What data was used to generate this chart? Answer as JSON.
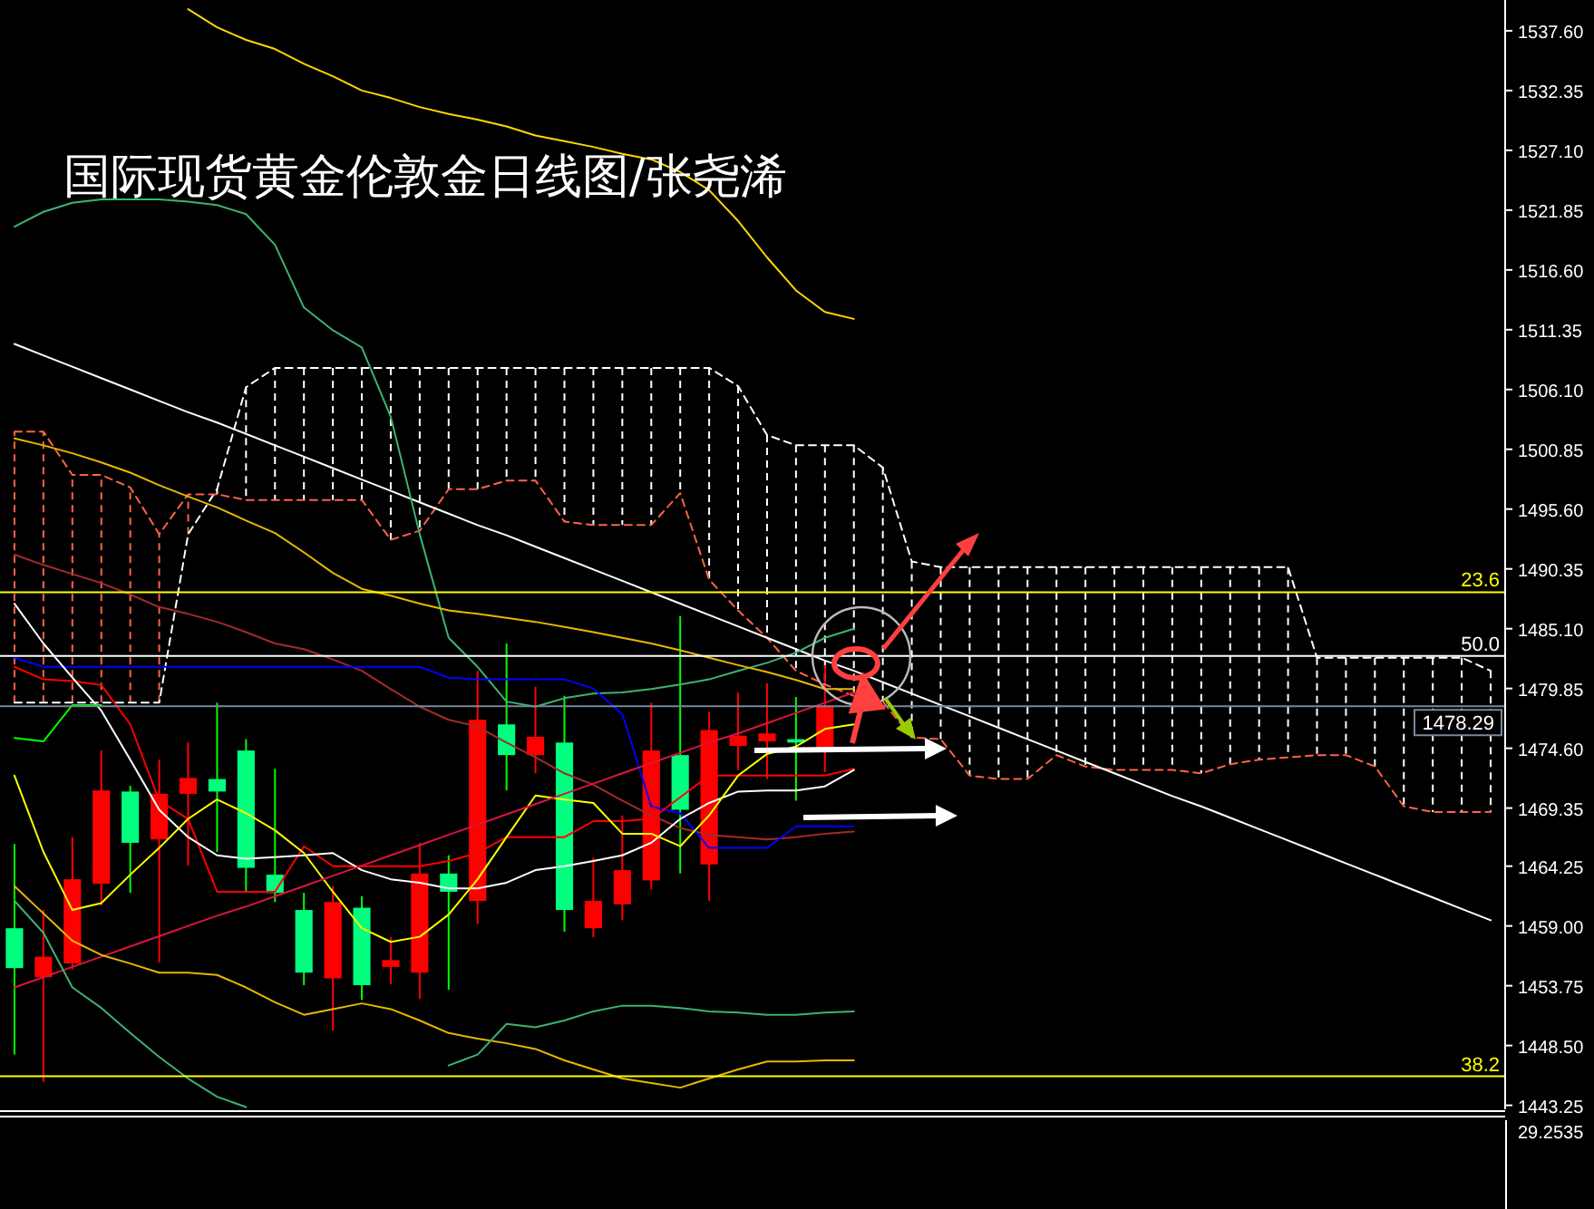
{
  "chart_data": {
    "type": "candlestick",
    "title": "国际现货黄金伦敦金日线图/张尧浠",
    "categories": [
      null,
      null,
      null,
      null,
      null,
      null,
      null,
      null,
      null,
      null,
      null,
      null,
      null,
      null,
      null,
      null,
      null,
      null,
      null,
      null,
      null,
      null,
      null,
      null,
      null,
      null,
      null,
      null,
      null,
      null,
      null,
      null,
      null,
      null,
      null,
      null,
      null,
      null,
      null,
      null,
      null,
      null,
      null,
      null,
      null,
      null,
      null,
      null,
      null,
      null,
      null,
      null
    ],
    "ohlc": [
      [
        1458.8,
        1466.2,
        1447.7,
        1455.3
      ],
      [
        1454.5,
        1460.4,
        1445.3,
        1456.3
      ],
      [
        1455.7,
        1466.8,
        1455.2,
        1463.1
      ],
      [
        1462.7,
        1474.4,
        1460.8,
        1470.9
      ],
      [
        1470.8,
        1471.3,
        1461.9,
        1466.3
      ],
      [
        1466.6,
        1473.6,
        1455.8,
        1470.6
      ],
      [
        1470.6,
        1475.1,
        1464.3,
        1472.0
      ],
      [
        1471.9,
        1478.6,
        1465.5,
        1470.8
      ],
      [
        1474.4,
        1475.4,
        1462.0,
        1464.1
      ],
      [
        1463.5,
        1472.8,
        1461.1,
        1461.9
      ],
      [
        1460.4,
        1461.9,
        1453.8,
        1454.9
      ],
      [
        1454.4,
        1462.5,
        1449.8,
        1461.1
      ],
      [
        1460.6,
        1461.6,
        1452.5,
        1453.8
      ],
      [
        1455.4,
        1458.0,
        1453.9,
        1456.0
      ],
      [
        1454.9,
        1466.3,
        1452.6,
        1463.6
      ],
      [
        1463.6,
        1465.2,
        1453.4,
        1462.0
      ],
      [
        1461.2,
        1481.4,
        1459.2,
        1477.1
      ],
      [
        1476.7,
        1483.8,
        1470.9,
        1474.0
      ],
      [
        1474.0,
        1480.0,
        1472.4,
        1475.6
      ],
      [
        1475.1,
        1479.2,
        1458.5,
        1460.4
      ],
      [
        1458.8,
        1465.0,
        1458.0,
        1461.2
      ],
      [
        1460.9,
        1468.7,
        1459.5,
        1463.9
      ],
      [
        1463.0,
        1478.6,
        1462.2,
        1474.4
      ],
      [
        1474.0,
        1486.2,
        1463.6,
        1469.2
      ],
      [
        1464.4,
        1477.8,
        1461.2,
        1476.2
      ],
      [
        1474.8,
        1479.5,
        1472.7,
        1475.7
      ],
      [
        1475.2,
        1480.3,
        1471.9,
        1475.9
      ],
      [
        1475.4,
        1479.1,
        1470.0,
        1475.1
      ],
      [
        1474.4,
        1481.9,
        1472.5,
        1478.29
      ],
      null,
      null,
      null,
      null,
      null,
      null,
      null,
      null,
      null,
      null,
      null,
      null,
      null,
      null,
      null,
      null,
      null,
      null,
      null,
      null,
      null,
      null,
      null
    ],
    "colors": [
      "#00ff7f",
      "#ff0000",
      "#ff0000",
      "#ff0000",
      "#00ff7f",
      "#ff0000",
      "#ff0000",
      "#00ff7f",
      "#00ff7f",
      "#00ff7f",
      "#00ff7f",
      "#ff0000",
      "#00ff7f",
      "#ff0000",
      "#ff0000",
      "#00ff7f",
      "#ff0000",
      "#00ff7f",
      "#ff0000",
      "#00ff7f",
      "#ff0000",
      "#ff0000",
      "#ff0000",
      "#00ff7f",
      "#ff0000",
      "#ff0000",
      "#ff0000",
      "#00ff7f",
      "#ff0000",
      null,
      null,
      null,
      null,
      null,
      null,
      null,
      null,
      null,
      null,
      null,
      null,
      null,
      null,
      null,
      null,
      null,
      null,
      null,
      null,
      null,
      null,
      null
    ],
    "series": [
      {
        "type": "line",
        "color": "#ffffff",
        "line_style": "dashed",
        "values": [
          1478.6,
          1478.6,
          1478.6,
          1478.6,
          1478.6,
          1478.6,
          1493.4,
          1497.35,
          1506.3,
          1508.0,
          1508.0,
          1508.0,
          1508.0,
          1508.0,
          1508.0,
          1508.0,
          1508.0,
          1508.0,
          1508.0,
          1508.0,
          1508.0,
          1508.0,
          1508.0,
          1508.0,
          1508.0,
          1506.4,
          1502.1,
          1501.2,
          1501.2,
          1501.2,
          1499.25,
          1491.0,
          1490.5,
          1490.5,
          1490.5,
          1490.5,
          1490.5,
          1490.5,
          1490.5,
          1490.5,
          1490.5,
          1490.5,
          1490.5,
          1490.5,
          1490.5,
          1482.55,
          1482.55,
          1482.55,
          1482.55,
          1482.55,
          1482.55,
          1481.4
        ]
      },
      {
        "type": "line",
        "color": "#ff6347",
        "line_style": "dashed",
        "values": [
          1502.4,
          1502.4,
          1498.6,
          1498.6,
          1497.5,
          1493.4,
          1496.9,
          1496.9,
          1496.4,
          1496.4,
          1496.4,
          1496.4,
          1496.4,
          1492.9,
          1493.7,
          1497.35,
          1497.35,
          1498.1,
          1498.1,
          1494.5,
          1494.2,
          1494.2,
          1494.2,
          1497.0,
          1489.4,
          1486.7,
          1484.3,
          1481.4,
          1480.2,
          1479.2,
          1478.7,
          1475.55,
          1475.4,
          1472.2,
          1471.9,
          1471.9,
          1474.0,
          1473.0,
          1472.7,
          1472.7,
          1472.7,
          1472.4,
          1473.2,
          1473.6,
          1473.8,
          1474.0,
          1474.0,
          1473.0,
          1469.5,
          1469.0,
          1469.0,
          1469.0
        ]
      },
      {
        "type": "line",
        "color": "#ffffff",
        "values": [
          1510.1,
          1509.1,
          1508.1,
          1507.1,
          1506.1,
          1505.1,
          1504.1,
          1503.2,
          1502.2,
          1501.2,
          1500.2,
          1499.2,
          1498.2,
          1497.2,
          1496.2,
          1495.2,
          1494.2,
          1493.3,
          1492.3,
          1491.3,
          1490.3,
          1489.3,
          1488.3,
          1487.3,
          1486.3,
          1485.3,
          1484.3,
          1483.3,
          1482.3,
          1481.4,
          1480.4,
          1479.4,
          1478.4,
          1477.4,
          1476.4,
          1475.4,
          1474.4,
          1473.4,
          1472.4,
          1471.4,
          1470.4,
          1469.5,
          1468.5,
          1467.5,
          1466.5,
          1465.5,
          1464.5,
          1463.5,
          1462.5,
          1461.5,
          1460.5,
          1459.5
        ]
      },
      {
        "type": "line",
        "color": "#ffd700",
        "values": [
          null,
          null,
          null,
          null,
          null,
          null,
          1539.5,
          1537.9,
          1536.8,
          1536.0,
          1534.7,
          1533.6,
          1532.35,
          1531.7,
          1530.9,
          1530.3,
          1529.8,
          1529.2,
          1528.4,
          1527.9,
          1527.4,
          1526.8,
          1526.3,
          1525.2,
          1523.6,
          1520.9,
          1517.7,
          1514.8,
          1512.9,
          1512.3,
          null,
          null,
          null,
          null,
          null,
          null,
          null,
          null,
          null,
          null,
          null,
          null,
          null,
          null,
          null,
          null,
          null,
          null,
          null,
          null,
          null,
          null
        ]
      },
      {
        "type": "line",
        "color": "#3cb371",
        "values": [
          1520.4,
          1521.7,
          1522.5,
          1522.8,
          1522.8,
          1522.8,
          1522.6,
          1522.3,
          1521.5,
          1518.8,
          1513.3,
          1511.3,
          1509.8,
          1503.7,
          1493.4,
          1484.3,
          1481.75,
          1478.7,
          1478.25,
          1479.0,
          1479.4,
          1479.5,
          1479.8,
          1480.2,
          1480.65,
          1481.4,
          1482.1,
          1483.0,
          1484.3,
          1485.1,
          null,
          null,
          null,
          null,
          null,
          null,
          null,
          null,
          null,
          null,
          null,
          null,
          null,
          null,
          null,
          null,
          null,
          null,
          null,
          null,
          null,
          null
        ]
      },
      {
        "type": "line",
        "color": "#e6b800",
        "values": [
          1501.8,
          1501.2,
          1500.5,
          1499.7,
          1498.8,
          1497.7,
          1496.7,
          1495.75,
          1494.6,
          1493.5,
          1491.8,
          1490.0,
          1488.6,
          1488.0,
          1487.3,
          1486.7,
          1486.4,
          1486.05,
          1485.7,
          1485.25,
          1484.8,
          1484.3,
          1483.8,
          1483.2,
          1482.55,
          1481.9,
          1481.3,
          1480.6,
          1479.8,
          1479.8,
          null,
          null,
          null,
          null,
          null,
          null,
          null,
          null,
          null,
          null,
          null,
          null,
          null,
          null,
          null,
          null,
          null,
          null,
          null,
          null,
          null,
          null
        ]
      },
      {
        "type": "line",
        "color": "#a52a2a",
        "values": [
          1491.6,
          1490.7,
          1489.9,
          1489.1,
          1488.1,
          1487.0,
          1486.4,
          1485.7,
          1484.8,
          1483.8,
          1483.3,
          1482.4,
          1481.4,
          1479.8,
          1478.25,
          1477.1,
          1476.5,
          1475.1,
          1473.8,
          1472.4,
          1471.4,
          1470.0,
          1468.7,
          1467.6,
          1467.0,
          1466.8,
          1466.6,
          1466.8,
          1467.1,
          1467.3,
          null,
          null,
          null,
          null,
          null,
          null,
          null,
          null,
          null,
          null,
          null,
          null,
          null,
          null,
          null,
          null,
          null,
          null,
          null,
          null,
          null,
          null
        ]
      },
      {
        "type": "line",
        "color": "#0000ff",
        "values": [
          1482.55,
          1481.75,
          1481.75,
          1481.75,
          1481.75,
          1481.75,
          1481.75,
          1481.75,
          1481.75,
          1481.75,
          1481.75,
          1481.75,
          1481.75,
          1481.75,
          1481.75,
          1480.8,
          1480.65,
          1480.65,
          1480.65,
          1480.65,
          1479.85,
          1477.6,
          1469.5,
          1468.9,
          1465.85,
          1465.85,
          1465.85,
          1467.75,
          1467.75,
          1467.75,
          null,
          null,
          null,
          null,
          null,
          null,
          null,
          null,
          null,
          null,
          null,
          null,
          null,
          null,
          null,
          null,
          null,
          null,
          null,
          null,
          null,
          null
        ]
      },
      {
        "type": "line",
        "color": "#ff0000",
        "values": [
          1481.75,
          1480.65,
          1480.5,
          1480.15,
          1476.7,
          1470.0,
          1468.4,
          1462.0,
          1462.0,
          1462.0,
          1466.0,
          1464.25,
          1464.25,
          1464.25,
          1464.25,
          1464.7,
          1465.4,
          1466.8,
          1466.8,
          1466.8,
          1468.2,
          1468.2,
          1468.4,
          1470.3,
          1472.2,
          1472.2,
          1472.2,
          1472.2,
          1472.2,
          1472.8,
          null,
          null,
          null,
          null,
          null,
          null,
          null,
          null,
          null,
          null,
          null,
          null,
          null,
          null,
          null,
          null,
          null,
          null,
          null,
          null,
          null,
          null
        ]
      },
      {
        "type": "line",
        "color": "#ffffff",
        "values": [
          1487.3,
          1483.8,
          1480.8,
          1477.9,
          1473.6,
          1469.2,
          1466.8,
          1465.2,
          1464.9,
          1465.05,
          1465.2,
          1465.4,
          1463.9,
          1463.1,
          1462.8,
          1462.3,
          1462.3,
          1462.8,
          1463.9,
          1464.25,
          1464.7,
          1465.2,
          1466.3,
          1468.4,
          1469.8,
          1470.8,
          1470.9,
          1470.9,
          1471.25,
          1472.7,
          null,
          null,
          null,
          null,
          null,
          null,
          null,
          null,
          null,
          null,
          null,
          null,
          null,
          null,
          null,
          null,
          null,
          null,
          null,
          null,
          null,
          null
        ]
      },
      {
        "type": "line",
        "color": "#ffff00",
        "values": [
          1472.2,
          1465.5,
          1460.4,
          1461.0,
          1463.5,
          1465.85,
          1468.4,
          1470.1,
          1468.9,
          1467.4,
          1465.4,
          1462.0,
          1458.8,
          1457.6,
          1458.05,
          1460.0,
          1463.1,
          1466.8,
          1470.45,
          1470.1,
          1469.8,
          1467.1,
          1467.1,
          1466.0,
          1468.7,
          1472.2,
          1474.1,
          1474.75,
          1476.3,
          1476.7,
          null,
          null,
          null,
          null,
          null,
          null,
          null,
          null,
          null,
          null,
          null,
          null,
          null,
          null,
          null,
          null,
          null,
          null,
          null,
          null,
          null,
          null
        ]
      },
      {
        "type": "line",
        "color": "#dc143c",
        "values": [
          1453.6,
          1454.5,
          1455.4,
          1456.3,
          1457.2,
          1458.1,
          1459.0,
          1459.9,
          1460.7,
          1461.6,
          1462.5,
          1463.4,
          1464.3,
          1465.2,
          1466.1,
          1467.0,
          1467.9,
          1468.8,
          1469.7,
          1470.6,
          1471.5,
          1472.4,
          1473.3,
          1474.2,
          1475.1,
          1475.9,
          1476.8,
          1477.7,
          1478.6,
          1479.5,
          null,
          null,
          null,
          null,
          null,
          null,
          null,
          null,
          null,
          null,
          null,
          null,
          null,
          null,
          null,
          null,
          null,
          null,
          null,
          null,
          null,
          null
        ]
      },
      {
        "type": "line",
        "color": "#e6b800",
        "values": [
          1462.5,
          1460.1,
          1457.7,
          1456.45,
          1455.7,
          1454.9,
          1454.9,
          1454.7,
          1453.6,
          1452.3,
          1451.2,
          1451.7,
          1452.2,
          1451.7,
          1450.7,
          1449.6,
          1449.1,
          1448.7,
          1448.2,
          1447.2,
          1446.4,
          1445.6,
          1445.2,
          1444.8,
          1445.6,
          1446.4,
          1447.1,
          1447.1,
          1447.2,
          1447.2,
          null,
          null,
          null,
          null,
          null,
          null,
          null,
          null,
          null,
          null,
          null,
          null,
          null,
          null,
          null,
          null,
          null,
          null,
          null,
          null,
          null,
          null
        ]
      },
      {
        "type": "line",
        "color": "#3cb371",
        "values": [
          1461.2,
          1458.4,
          1453.6,
          1451.8,
          1449.6,
          1447.5,
          1445.6,
          1444.0,
          1443.1,
          null,
          null,
          null,
          null,
          null,
          null,
          1446.75,
          1447.7,
          1450.4,
          1450.1,
          1450.7,
          1451.5,
          1452.0,
          1452.0,
          1451.8,
          1451.5,
          1451.4,
          1451.2,
          1451.2,
          1451.4,
          1451.5,
          null,
          null,
          null,
          null,
          null,
          null,
          null,
          null,
          null,
          null,
          null,
          null,
          null,
          null,
          null,
          null,
          null,
          null,
          null,
          null,
          null,
          null
        ]
      },
      {
        "type": "line",
        "color": "#00ff00",
        "values": [
          1475.5,
          1475.2,
          1478.4,
          1478.4,
          null,
          null,
          null,
          null,
          null,
          null,
          null,
          null,
          null,
          null,
          null,
          null,
          null,
          null,
          null,
          null,
          null,
          null,
          null,
          null,
          null,
          null,
          null,
          null,
          null,
          null,
          null,
          null,
          null,
          null,
          null,
          null,
          null,
          null,
          null,
          null,
          null,
          null,
          null,
          null,
          null,
          null,
          null,
          null,
          null,
          null,
          null,
          null
        ]
      }
    ],
    "ylim": [
      1442.9,
      1540.3
    ],
    "yticks": [
      {
        "value": 1537.6,
        "label": "1537.60"
      },
      {
        "value": 1532.35,
        "label": "1532.35"
      },
      {
        "value": 1527.1,
        "label": "1527.10"
      },
      {
        "value": 1521.85,
        "label": "1521.85"
      },
      {
        "value": 1516.6,
        "label": "1516.60"
      },
      {
        "value": 1511.35,
        "label": "1511.35"
      },
      {
        "value": 1506.1,
        "label": "1506.10"
      },
      {
        "value": 1500.85,
        "label": "1500.85"
      },
      {
        "value": 1495.6,
        "label": "1495.60"
      },
      {
        "value": 1490.35,
        "label": "1490.35"
      },
      {
        "value": 1485.1,
        "label": "1485.10"
      },
      {
        "value": 1479.85,
        "label": "1479.85"
      },
      {
        "value": 1474.6,
        "label": "1474.60"
      },
      {
        "value": 1469.35,
        "label": "1469.35"
      },
      {
        "value": 1464.25,
        "label": "1464.25"
      },
      {
        "value": 1459.0,
        "label": "1459.00"
      },
      {
        "value": 1453.75,
        "label": "1453.75"
      },
      {
        "value": 1448.5,
        "label": "1448.50"
      },
      {
        "value": 1443.25,
        "label": "1443.25"
      }
    ],
    "ref_lines": [
      {
        "axis": "y",
        "value": 1488.3,
        "color": "#ffff00"
      },
      {
        "axis": "y",
        "value": 1482.7,
        "color": "#ffffff"
      },
      {
        "axis": "y",
        "value": 1478.29,
        "label": "1478.29",
        "color": "#778899"
      },
      {
        "axis": "y",
        "value": 1445.8,
        "color": "#ffff00"
      }
    ],
    "tick_labels": "y",
    "annotations": [
      {
        "text": "23.6",
        "y": 1488.3
      },
      {
        "text": "50.0",
        "y": 1482.7
      },
      {
        "text": "38.2",
        "y": 1445.8
      },
      "29.2535"
    ]
  }
}
